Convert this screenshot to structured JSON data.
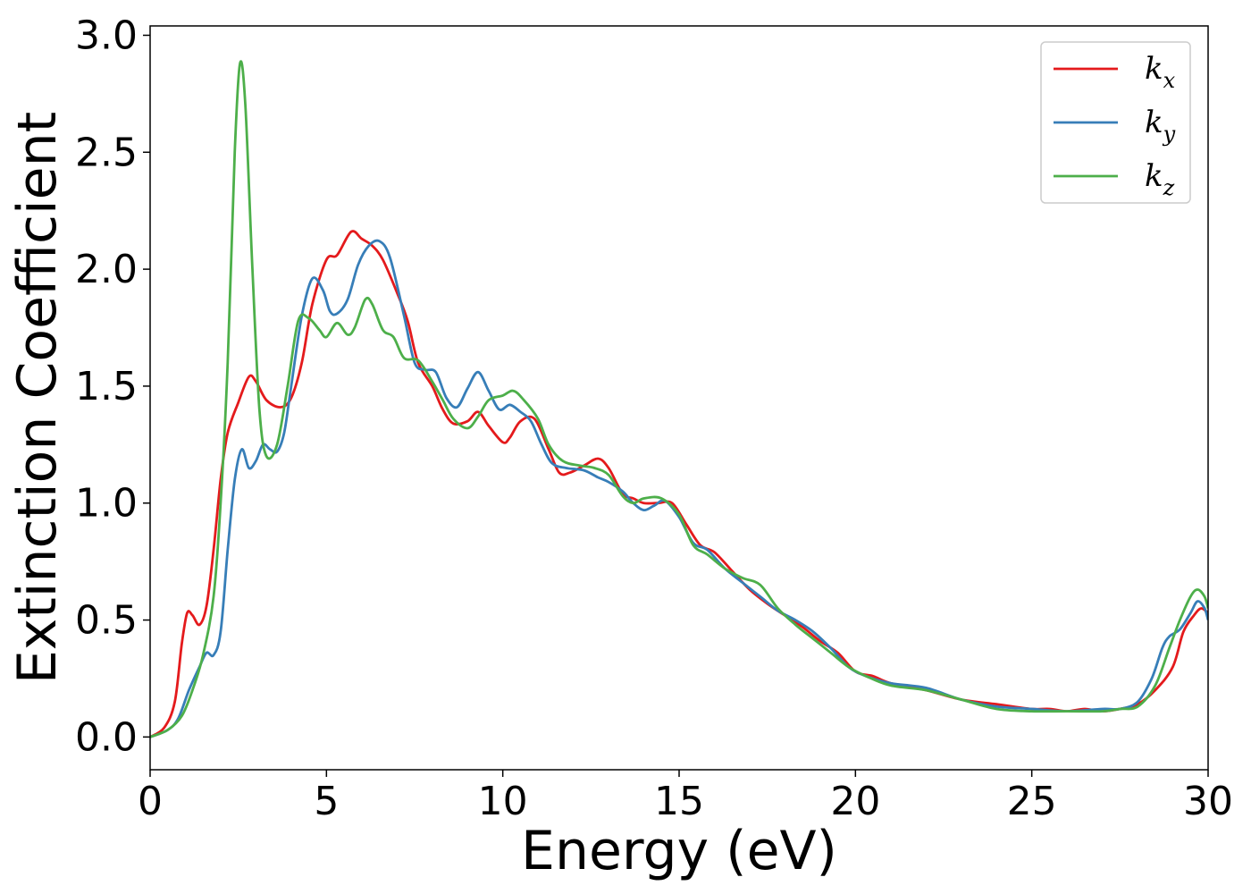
{
  "chart_data": {
    "type": "line",
    "xlabel": "Energy (eV)",
    "ylabel": "Extinction Coefficient",
    "xlim": [
      0,
      30
    ],
    "ylim": [
      -0.14,
      3.04
    ],
    "xticks": [
      0,
      5,
      10,
      15,
      20,
      25,
      30
    ],
    "yticks": [
      0.0,
      0.5,
      1.0,
      1.5,
      2.0,
      2.5,
      3.0
    ],
    "xtick_labels": [
      "0",
      "5",
      "10",
      "15",
      "20",
      "25",
      "30"
    ],
    "ytick_labels": [
      "0.0",
      "0.5",
      "1.0",
      "1.5",
      "2.0",
      "2.5",
      "3.0"
    ],
    "grid": false,
    "legend_position": "top-right",
    "series": [
      {
        "name": "k_x",
        "label_base": "k",
        "label_sub": "x",
        "color": "#e41a1c",
        "points": [
          [
            0,
            0
          ],
          [
            0.4,
            0.04
          ],
          [
            0.7,
            0.15
          ],
          [
            0.9,
            0.4
          ],
          [
            1.05,
            0.53
          ],
          [
            1.2,
            0.52
          ],
          [
            1.4,
            0.48
          ],
          [
            1.6,
            0.56
          ],
          [
            1.8,
            0.8
          ],
          [
            2.0,
            1.1
          ],
          [
            2.2,
            1.3
          ],
          [
            2.5,
            1.43
          ],
          [
            2.8,
            1.54
          ],
          [
            3.0,
            1.52
          ],
          [
            3.3,
            1.44
          ],
          [
            3.7,
            1.41
          ],
          [
            4.0,
            1.45
          ],
          [
            4.3,
            1.6
          ],
          [
            4.6,
            1.85
          ],
          [
            5.0,
            2.04
          ],
          [
            5.3,
            2.06
          ],
          [
            5.7,
            2.16
          ],
          [
            6.0,
            2.13
          ],
          [
            6.3,
            2.1
          ],
          [
            6.6,
            2.04
          ],
          [
            7.0,
            1.9
          ],
          [
            7.3,
            1.78
          ],
          [
            7.6,
            1.6
          ],
          [
            8.0,
            1.5
          ],
          [
            8.3,
            1.4
          ],
          [
            8.6,
            1.34
          ],
          [
            9.0,
            1.35
          ],
          [
            9.3,
            1.39
          ],
          [
            9.6,
            1.33
          ],
          [
            10.0,
            1.26
          ],
          [
            10.2,
            1.28
          ],
          [
            10.5,
            1.35
          ],
          [
            10.9,
            1.36
          ],
          [
            11.3,
            1.23
          ],
          [
            11.6,
            1.13
          ],
          [
            11.9,
            1.13
          ],
          [
            12.3,
            1.16
          ],
          [
            12.7,
            1.19
          ],
          [
            13.0,
            1.15
          ],
          [
            13.4,
            1.04
          ],
          [
            13.7,
            1.02
          ],
          [
            14.0,
            1.0
          ],
          [
            14.4,
            1.0
          ],
          [
            14.8,
            1.0
          ],
          [
            15.2,
            0.91
          ],
          [
            15.6,
            0.82
          ],
          [
            16.0,
            0.79
          ],
          [
            16.5,
            0.71
          ],
          [
            17.0,
            0.63
          ],
          [
            17.5,
            0.57
          ],
          [
            18.0,
            0.52
          ],
          [
            18.5,
            0.47
          ],
          [
            19.0,
            0.41
          ],
          [
            19.5,
            0.36
          ],
          [
            20.0,
            0.28
          ],
          [
            20.5,
            0.26
          ],
          [
            21.0,
            0.23
          ],
          [
            22.0,
            0.2
          ],
          [
            23.0,
            0.16
          ],
          [
            24.0,
            0.14
          ],
          [
            25.0,
            0.12
          ],
          [
            25.5,
            0.12
          ],
          [
            26.0,
            0.11
          ],
          [
            26.5,
            0.12
          ],
          [
            27.0,
            0.11
          ],
          [
            27.5,
            0.12
          ],
          [
            28.0,
            0.14
          ],
          [
            28.5,
            0.2
          ],
          [
            29.0,
            0.3
          ],
          [
            29.3,
            0.45
          ],
          [
            29.6,
            0.52
          ],
          [
            29.8,
            0.55
          ],
          [
            30.0,
            0.53
          ]
        ]
      },
      {
        "name": "k_y",
        "label_base": "k",
        "label_sub": "y",
        "color": "#377eb8",
        "points": [
          [
            0,
            0
          ],
          [
            0.5,
            0.03
          ],
          [
            0.8,
            0.08
          ],
          [
            1.1,
            0.2
          ],
          [
            1.4,
            0.3
          ],
          [
            1.6,
            0.36
          ],
          [
            1.8,
            0.35
          ],
          [
            2.0,
            0.45
          ],
          [
            2.2,
            0.8
          ],
          [
            2.4,
            1.1
          ],
          [
            2.6,
            1.23
          ],
          [
            2.8,
            1.15
          ],
          [
            3.0,
            1.18
          ],
          [
            3.2,
            1.25
          ],
          [
            3.4,
            1.23
          ],
          [
            3.6,
            1.22
          ],
          [
            3.8,
            1.3
          ],
          [
            4.0,
            1.5
          ],
          [
            4.3,
            1.8
          ],
          [
            4.6,
            1.96
          ],
          [
            4.9,
            1.91
          ],
          [
            5.1,
            1.82
          ],
          [
            5.3,
            1.81
          ],
          [
            5.6,
            1.87
          ],
          [
            5.9,
            2.02
          ],
          [
            6.2,
            2.1
          ],
          [
            6.5,
            2.12
          ],
          [
            6.8,
            2.05
          ],
          [
            7.2,
            1.8
          ],
          [
            7.5,
            1.6
          ],
          [
            7.8,
            1.57
          ],
          [
            8.1,
            1.56
          ],
          [
            8.4,
            1.45
          ],
          [
            8.7,
            1.41
          ],
          [
            9.0,
            1.49
          ],
          [
            9.3,
            1.56
          ],
          [
            9.6,
            1.48
          ],
          [
            9.9,
            1.4
          ],
          [
            10.2,
            1.42
          ],
          [
            10.5,
            1.39
          ],
          [
            10.8,
            1.35
          ],
          [
            11.1,
            1.25
          ],
          [
            11.4,
            1.17
          ],
          [
            11.8,
            1.15
          ],
          [
            12.3,
            1.14
          ],
          [
            12.7,
            1.11
          ],
          [
            13.0,
            1.09
          ],
          [
            13.4,
            1.05
          ],
          [
            13.7,
            1.0
          ],
          [
            14.0,
            0.97
          ],
          [
            14.3,
            0.99
          ],
          [
            14.6,
            1.01
          ],
          [
            15.0,
            0.94
          ],
          [
            15.4,
            0.83
          ],
          [
            15.8,
            0.8
          ],
          [
            16.3,
            0.72
          ],
          [
            16.8,
            0.66
          ],
          [
            17.3,
            0.6
          ],
          [
            17.8,
            0.54
          ],
          [
            18.3,
            0.5
          ],
          [
            18.8,
            0.45
          ],
          [
            19.3,
            0.38
          ],
          [
            19.8,
            0.3
          ],
          [
            20.3,
            0.26
          ],
          [
            21.0,
            0.23
          ],
          [
            22.0,
            0.21
          ],
          [
            23.0,
            0.16
          ],
          [
            24.0,
            0.13
          ],
          [
            25.0,
            0.12
          ],
          [
            26.0,
            0.11
          ],
          [
            27.0,
            0.12
          ],
          [
            27.5,
            0.12
          ],
          [
            28.0,
            0.15
          ],
          [
            28.4,
            0.25
          ],
          [
            28.7,
            0.38
          ],
          [
            28.9,
            0.43
          ],
          [
            29.2,
            0.46
          ],
          [
            29.5,
            0.53
          ],
          [
            29.7,
            0.58
          ],
          [
            29.9,
            0.55
          ],
          [
            30.0,
            0.5
          ]
        ]
      },
      {
        "name": "k_z",
        "label_base": "k",
        "label_sub": "z",
        "color": "#4daf4a",
        "points": [
          [
            0,
            0
          ],
          [
            0.5,
            0.03
          ],
          [
            0.9,
            0.09
          ],
          [
            1.2,
            0.2
          ],
          [
            1.5,
            0.35
          ],
          [
            1.8,
            0.6
          ],
          [
            2.0,
            1.0
          ],
          [
            2.2,
            1.6
          ],
          [
            2.4,
            2.5
          ],
          [
            2.55,
            2.88
          ],
          [
            2.7,
            2.7
          ],
          [
            2.9,
            2.0
          ],
          [
            3.1,
            1.4
          ],
          [
            3.3,
            1.2
          ],
          [
            3.6,
            1.25
          ],
          [
            3.9,
            1.5
          ],
          [
            4.2,
            1.78
          ],
          [
            4.5,
            1.79
          ],
          [
            4.8,
            1.74
          ],
          [
            5.0,
            1.71
          ],
          [
            5.3,
            1.77
          ],
          [
            5.6,
            1.72
          ],
          [
            5.8,
            1.75
          ],
          [
            6.1,
            1.87
          ],
          [
            6.3,
            1.85
          ],
          [
            6.6,
            1.74
          ],
          [
            6.9,
            1.71
          ],
          [
            7.2,
            1.62
          ],
          [
            7.6,
            1.61
          ],
          [
            8.0,
            1.52
          ],
          [
            8.3,
            1.44
          ],
          [
            8.6,
            1.36
          ],
          [
            9.0,
            1.32
          ],
          [
            9.3,
            1.37
          ],
          [
            9.6,
            1.44
          ],
          [
            10.0,
            1.46
          ],
          [
            10.3,
            1.48
          ],
          [
            10.6,
            1.44
          ],
          [
            11.0,
            1.36
          ],
          [
            11.3,
            1.25
          ],
          [
            11.7,
            1.18
          ],
          [
            12.2,
            1.16
          ],
          [
            12.6,
            1.15
          ],
          [
            13.0,
            1.12
          ],
          [
            13.4,
            1.03
          ],
          [
            13.7,
            1.0
          ],
          [
            14.0,
            1.02
          ],
          [
            14.5,
            1.02
          ],
          [
            15.0,
            0.95
          ],
          [
            15.4,
            0.82
          ],
          [
            15.8,
            0.78
          ],
          [
            16.3,
            0.72
          ],
          [
            16.8,
            0.68
          ],
          [
            17.3,
            0.65
          ],
          [
            17.8,
            0.55
          ],
          [
            18.3,
            0.48
          ],
          [
            18.8,
            0.42
          ],
          [
            19.3,
            0.36
          ],
          [
            19.8,
            0.3
          ],
          [
            20.3,
            0.26
          ],
          [
            21.0,
            0.22
          ],
          [
            22.0,
            0.2
          ],
          [
            23.0,
            0.16
          ],
          [
            24.0,
            0.12
          ],
          [
            25.0,
            0.11
          ],
          [
            26.0,
            0.11
          ],
          [
            27.0,
            0.11
          ],
          [
            27.5,
            0.12
          ],
          [
            28.0,
            0.13
          ],
          [
            28.5,
            0.22
          ],
          [
            28.9,
            0.38
          ],
          [
            29.2,
            0.5
          ],
          [
            29.5,
            0.6
          ],
          [
            29.7,
            0.63
          ],
          [
            29.9,
            0.6
          ],
          [
            30.0,
            0.55
          ]
        ]
      }
    ]
  }
}
